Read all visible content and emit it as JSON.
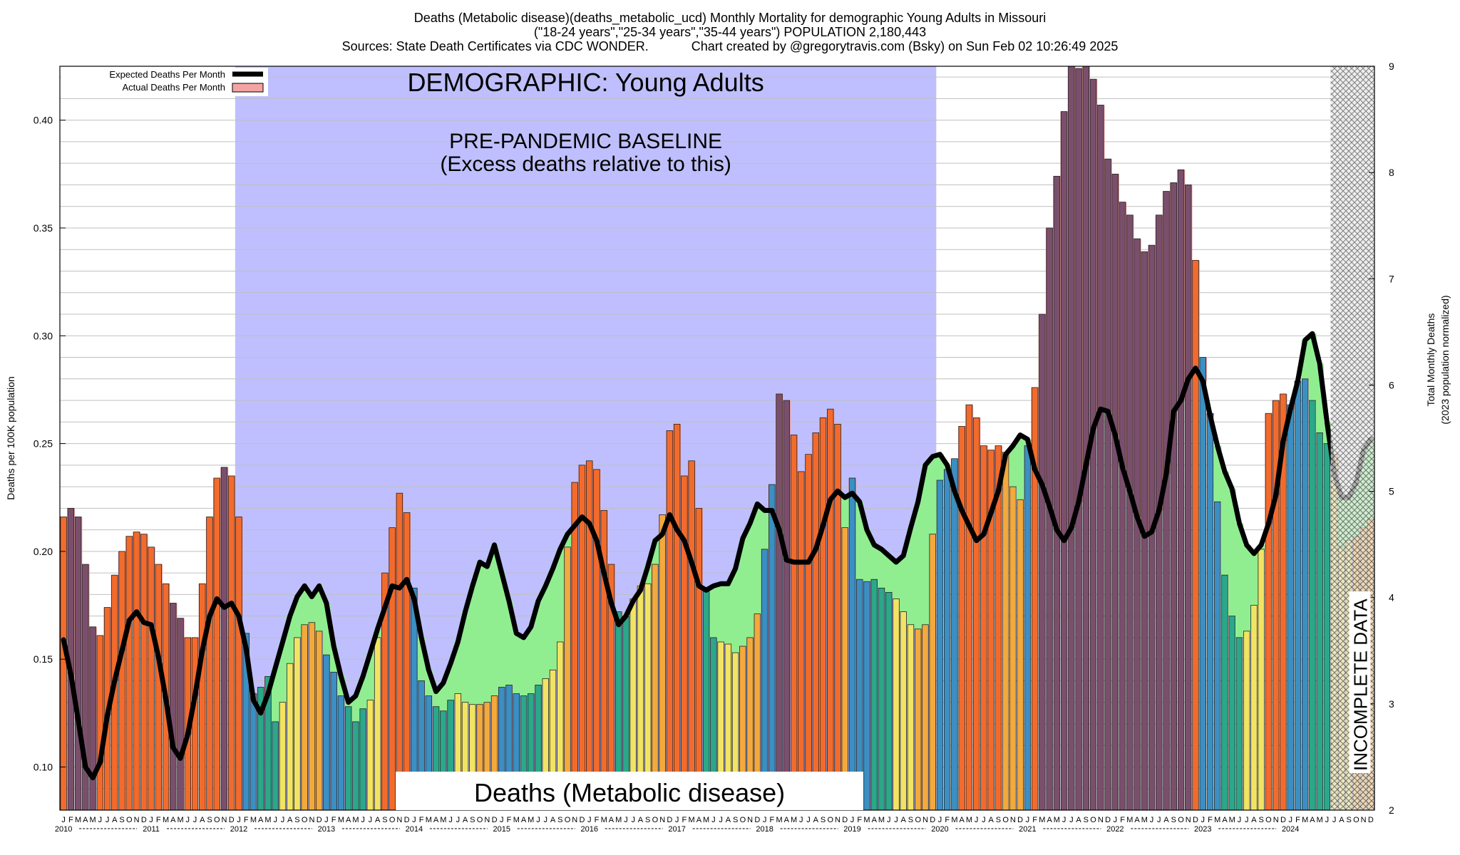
{
  "header": {
    "title_line1": "Deaths (Metabolic disease)(deaths_metabolic_ucd) Monthly Mortality for demographic Young Adults in Missouri",
    "title_line2": "(\"18-24 years\",\"25-34 years\",\"35-44 years\") POPULATION 2,180,443",
    "title_line3": "Sources: State Death Certificates via CDC WONDER.            Chart created by @gregorytravis.com (Bsky) on Sun Feb 02 10:26:49 2025"
  },
  "chart_data": {
    "type": "bar",
    "ylabel": "Deaths per 100K population",
    "y2label_line1": "Total Monthly Deaths",
    "y2label_line2": "(2023 population normalized)",
    "ylim": [
      0.08,
      0.425
    ],
    "y2lim": [
      2,
      9
    ],
    "yticks": [
      "0.10",
      "0.15",
      "0.20",
      "0.25",
      "0.30",
      "0.35",
      "0.40"
    ],
    "y2ticks": [
      "2",
      "3",
      "4",
      "5",
      "6",
      "7",
      "8",
      "9"
    ],
    "grid": true,
    "legend_position": "top-left",
    "legend": [
      {
        "label": "Expected Deaths Per Month",
        "color": "#000000"
      },
      {
        "label": "Actual Deaths Per Month",
        "color": "#f4a3a3"
      }
    ],
    "month_letters": [
      "J",
      "F",
      "M",
      "A",
      "M",
      "J",
      "J",
      "A",
      "S",
      "O",
      "N",
      "D"
    ],
    "years": [
      "2010",
      "2011",
      "2012",
      "2013",
      "2014",
      "2015",
      "2016",
      "2017",
      "2018",
      "2019",
      "2020",
      "2021",
      "2022",
      "2023",
      "2024"
    ],
    "start": "2010-01",
    "actual": [
      0.216,
      0.22,
      0.216,
      0.194,
      0.165,
      0.161,
      0.174,
      0.189,
      0.2,
      0.207,
      0.209,
      0.208,
      0.202,
      0.194,
      0.185,
      0.176,
      0.169,
      0.16,
      0.16,
      0.185,
      0.216,
      0.234,
      0.239,
      0.235,
      0.216,
      0.162,
      0.134,
      0.137,
      0.142,
      0.121,
      0.13,
      0.148,
      0.16,
      0.166,
      0.167,
      0.163,
      0.152,
      0.144,
      0.133,
      0.128,
      0.121,
      0.127,
      0.131,
      0.16,
      0.19,
      0.211,
      0.227,
      0.218,
      0.183,
      0.14,
      0.133,
      0.128,
      0.126,
      0.131,
      0.134,
      0.13,
      0.129,
      0.129,
      0.13,
      0.133,
      0.137,
      0.138,
      0.134,
      0.133,
      0.134,
      0.138,
      0.141,
      0.145,
      0.158,
      0.202,
      0.232,
      0.24,
      0.242,
      0.238,
      0.219,
      0.194,
      0.172,
      0.17,
      0.178,
      0.184,
      0.185,
      0.194,
      0.217,
      0.256,
      0.259,
      0.235,
      0.242,
      0.22,
      0.182,
      0.16,
      0.158,
      0.157,
      0.153,
      0.156,
      0.16,
      0.171,
      0.201,
      0.231,
      0.273,
      0.27,
      0.254,
      0.237,
      0.245,
      0.255,
      0.262,
      0.266,
      0.259,
      0.211,
      0.234,
      0.187,
      0.186,
      0.187,
      0.183,
      0.181,
      0.178,
      0.172,
      0.166,
      0.164,
      0.166,
      0.208,
      0.233,
      0.238,
      0.243,
      0.258,
      0.268,
      0.262,
      0.249,
      0.247,
      0.249,
      0.246,
      0.23,
      0.224,
      0.249,
      0.276,
      0.31,
      0.35,
      0.374,
      0.404,
      0.43,
      0.424,
      0.43,
      0.419,
      0.407,
      0.382,
      0.375,
      0.362,
      0.356,
      0.345,
      0.339,
      0.342,
      0.356,
      0.367,
      0.371,
      0.377,
      0.37,
      0.335,
      0.29,
      0.264,
      0.223,
      0.189,
      0.17,
      0.16,
      0.163,
      0.175,
      0.201,
      0.264,
      0.27,
      0.273,
      0.268,
      0.279,
      0.28,
      0.27,
      0.255,
      0.25,
      0.245,
      0.202,
      0.205,
      0.207,
      0.211,
      0.215
    ],
    "expected": [
      0.159,
      0.143,
      0.122,
      0.1,
      0.095,
      0.102,
      0.124,
      0.14,
      0.154,
      0.168,
      0.172,
      0.167,
      0.166,
      0.151,
      0.132,
      0.109,
      0.104,
      0.115,
      0.133,
      0.154,
      0.17,
      0.178,
      0.174,
      0.176,
      0.17,
      0.155,
      0.131,
      0.125,
      0.134,
      0.146,
      0.158,
      0.17,
      0.179,
      0.184,
      0.179,
      0.184,
      0.176,
      0.156,
      0.142,
      0.13,
      0.133,
      0.142,
      0.153,
      0.164,
      0.174,
      0.184,
      0.183,
      0.187,
      0.178,
      0.16,
      0.145,
      0.135,
      0.139,
      0.148,
      0.158,
      0.172,
      0.184,
      0.195,
      0.193,
      0.203,
      0.19,
      0.177,
      0.162,
      0.16,
      0.165,
      0.177,
      0.184,
      0.192,
      0.201,
      0.208,
      0.212,
      0.216,
      0.213,
      0.205,
      0.19,
      0.176,
      0.166,
      0.17,
      0.177,
      0.182,
      0.193,
      0.205,
      0.208,
      0.217,
      0.21,
      0.205,
      0.195,
      0.184,
      0.182,
      0.184,
      0.185,
      0.185,
      0.192,
      0.206,
      0.213,
      0.222,
      0.219,
      0.219,
      0.21,
      0.196,
      0.195,
      0.195,
      0.195,
      0.201,
      0.212,
      0.224,
      0.228,
      0.225,
      0.227,
      0.223,
      0.21,
      0.203,
      0.201,
      0.198,
      0.195,
      0.198,
      0.211,
      0.223,
      0.24,
      0.244,
      0.245,
      0.24,
      0.228,
      0.219,
      0.212,
      0.205,
      0.208,
      0.218,
      0.228,
      0.245,
      0.249,
      0.254,
      0.252,
      0.238,
      0.231,
      0.221,
      0.21,
      0.205,
      0.211,
      0.223,
      0.24,
      0.257,
      0.266,
      0.265,
      0.254,
      0.239,
      0.228,
      0.216,
      0.207,
      0.209,
      0.219,
      0.236,
      0.265,
      0.27,
      0.28,
      0.285,
      0.279,
      0.263,
      0.249,
      0.237,
      0.229,
      0.213,
      0.203,
      0.199,
      0.203,
      0.213,
      0.226,
      0.251,
      0.266,
      0.279,
      0.298,
      0.301,
      0.287,
      0.26,
      0.236,
      0.225,
      0.225,
      0.232,
      0.247,
      0.252
    ],
    "annotations": {
      "baseline_heading": "DEMOGRAPHIC: Young Adults",
      "baseline_line1": "PRE-PANDEMIC BASELINE",
      "baseline_line2": "(Excess deaths relative to this)",
      "bottom_label": "Deaths (Metabolic disease)",
      "incomplete_label": "INCOMPLETE DATA"
    },
    "colors": {
      "baseline_band": "#bfbfff",
      "excess_fill": "#f4a3a3",
      "deficit_fill": "#90ee90",
      "expected_line": "#000000",
      "bar_q1": "#3b8fc2",
      "bar_q2": "#2aa889",
      "bar_q3": "#f2e463",
      "bar_q4": "#f3a93c",
      "bar_excess": "#f26b2c",
      "bar_excess_deep": "#7a4f6c"
    }
  }
}
